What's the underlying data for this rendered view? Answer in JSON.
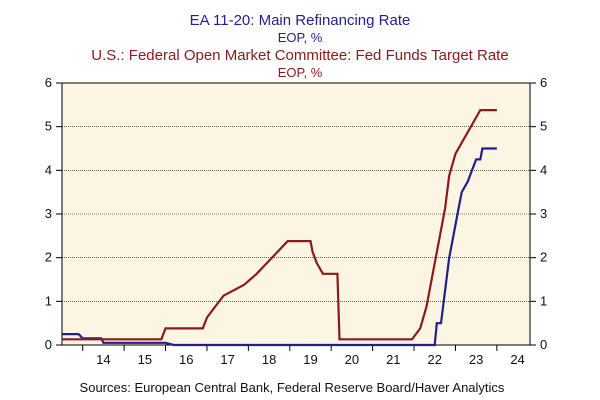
{
  "chart_data": {
    "type": "line",
    "titles": [
      {
        "text": "EA 11-20: Main Refinancing Rate",
        "color": "#1f1f8f"
      },
      {
        "text": "EOP, %",
        "color": "#1f1f8f"
      },
      {
        "text": "U.S.: Federal Open Market Committee: Fed Funds Target Rate",
        "color": "#8b1a1a"
      },
      {
        "text": "EOP, %",
        "color": "#8b1a1a"
      }
    ],
    "source": "Sources:  European Central Bank, Federal Reserve Board/Haver Analytics",
    "x_ticks": [
      "14",
      "15",
      "16",
      "17",
      "18",
      "19",
      "20",
      "21",
      "22",
      "23",
      "24"
    ],
    "xlim": [
      2013.5,
      2024.8
    ],
    "ylim": [
      0,
      6
    ],
    "y_ticks": [
      0,
      1,
      2,
      3,
      4,
      5,
      6
    ],
    "grid": true,
    "background": "#fdf5e4",
    "series": [
      {
        "name": "EA 11-20: Main Refinancing Rate",
        "color": "#1f1f8f",
        "points": [
          [
            2013.5,
            0.25
          ],
          [
            2013.9,
            0.25
          ],
          [
            2014.0,
            0.15
          ],
          [
            2014.45,
            0.15
          ],
          [
            2014.5,
            0.05
          ],
          [
            2016.0,
            0.05
          ],
          [
            2016.2,
            0.0
          ],
          [
            2022.0,
            0.0
          ],
          [
            2022.5,
            0.0
          ],
          [
            2022.55,
            0.5
          ],
          [
            2022.65,
            0.5
          ],
          [
            2022.75,
            1.25
          ],
          [
            2022.85,
            2.0
          ],
          [
            2022.95,
            2.5
          ],
          [
            2023.05,
            3.0
          ],
          [
            2023.15,
            3.5
          ],
          [
            2023.3,
            3.75
          ],
          [
            2023.4,
            4.0
          ],
          [
            2023.5,
            4.25
          ],
          [
            2023.6,
            4.25
          ],
          [
            2023.65,
            4.5
          ],
          [
            2024.0,
            4.5
          ]
        ]
      },
      {
        "name": "U.S.: Federal Open Market Committee: Fed Funds Target Rate",
        "color": "#8b1a1a",
        "points": [
          [
            2013.5,
            0.13
          ],
          [
            2015.9,
            0.13
          ],
          [
            2016.0,
            0.38
          ],
          [
            2016.9,
            0.38
          ],
          [
            2017.0,
            0.63
          ],
          [
            2017.2,
            0.88
          ],
          [
            2017.4,
            1.13
          ],
          [
            2017.9,
            1.38
          ],
          [
            2018.2,
            1.63
          ],
          [
            2018.45,
            1.88
          ],
          [
            2018.7,
            2.13
          ],
          [
            2018.95,
            2.38
          ],
          [
            2019.5,
            2.38
          ],
          [
            2019.55,
            2.13
          ],
          [
            2019.65,
            1.88
          ],
          [
            2019.8,
            1.63
          ],
          [
            2020.15,
            1.63
          ],
          [
            2020.2,
            0.13
          ],
          [
            2021.95,
            0.13
          ],
          [
            2022.15,
            0.38
          ],
          [
            2022.3,
            0.88
          ],
          [
            2022.45,
            1.63
          ],
          [
            2022.6,
            2.38
          ],
          [
            2022.75,
            3.13
          ],
          [
            2022.85,
            3.88
          ],
          [
            2023.0,
            4.38
          ],
          [
            2023.15,
            4.63
          ],
          [
            2023.3,
            4.88
          ],
          [
            2023.45,
            5.13
          ],
          [
            2023.6,
            5.38
          ],
          [
            2024.0,
            5.38
          ]
        ]
      }
    ]
  }
}
